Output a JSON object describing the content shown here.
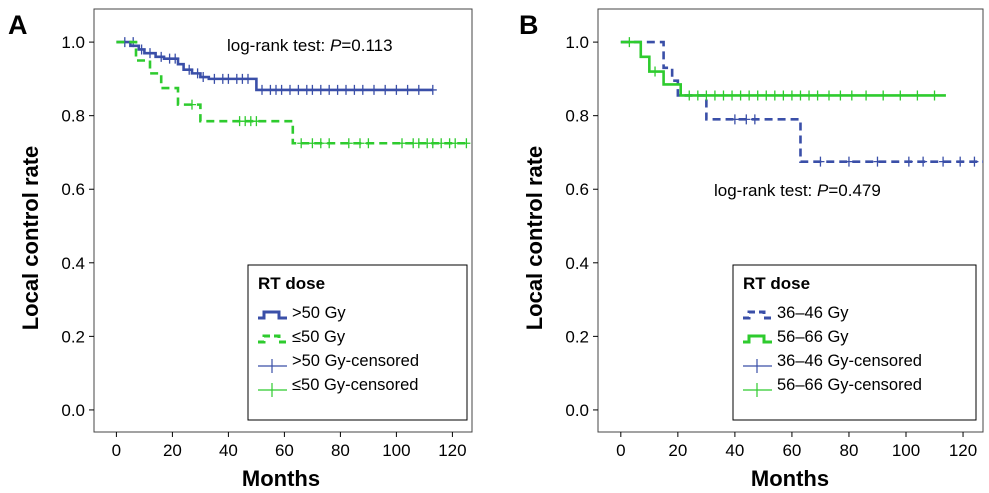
{
  "chart_data": [
    {
      "panel": "A",
      "type": "line",
      "step": true,
      "xlabel": "Months",
      "ylabel": "Local control rate",
      "xlim": [
        -8,
        127
      ],
      "ylim": [
        -0.06,
        1.09
      ],
      "xticks": [
        0,
        20,
        40,
        60,
        80,
        100,
        120
      ],
      "yticks": [
        "0.0",
        "0.2",
        "0.4",
        "0.6",
        "0.8",
        "1.0"
      ],
      "annotation": {
        "prefix": "log-rank test: ",
        "italic": "P",
        "suffix": "=0.113"
      },
      "legend": {
        "title": "RT dose",
        "placement": "bottom-right",
        "entries": [
          ">50 Gy",
          "≤50 Gy",
          ">50 Gy-censored",
          "≤50 Gy-censored"
        ]
      },
      "series": [
        {
          "name": ">50 Gy",
          "color": "#3a4fa8",
          "dash": false,
          "x": [
            0,
            5,
            8,
            10,
            14,
            17,
            22,
            24,
            27,
            30,
            33,
            50,
            113
          ],
          "y": [
            1.0,
            0.99,
            0.98,
            0.97,
            0.96,
            0.955,
            0.94,
            0.925,
            0.915,
            0.905,
            0.9,
            0.87,
            0.87
          ],
          "censored": [
            [
              3,
              1.0
            ],
            [
              6,
              1.0
            ],
            [
              9,
              0.98
            ],
            [
              12,
              0.97
            ],
            [
              16,
              0.96
            ],
            [
              19,
              0.955
            ],
            [
              21,
              0.955
            ],
            [
              26,
              0.925
            ],
            [
              29,
              0.915
            ],
            [
              31,
              0.905
            ],
            [
              35,
              0.9
            ],
            [
              38,
              0.9
            ],
            [
              40,
              0.9
            ],
            [
              43,
              0.9
            ],
            [
              45,
              0.9
            ],
            [
              47,
              0.9
            ],
            [
              52,
              0.87
            ],
            [
              55,
              0.87
            ],
            [
              57,
              0.87
            ],
            [
              59,
              0.87
            ],
            [
              62,
              0.87
            ],
            [
              65,
              0.87
            ],
            [
              68,
              0.87
            ],
            [
              70,
              0.87
            ],
            [
              73,
              0.87
            ],
            [
              76,
              0.87
            ],
            [
              79,
              0.87
            ],
            [
              82,
              0.87
            ],
            [
              85,
              0.87
            ],
            [
              88,
              0.87
            ],
            [
              92,
              0.87
            ],
            [
              96,
              0.87
            ],
            [
              100,
              0.87
            ],
            [
              104,
              0.87
            ],
            [
              108,
              0.87
            ],
            [
              113,
              0.87
            ]
          ]
        },
        {
          "name": "≤50 Gy",
          "color": "#2ecb2e",
          "dash": true,
          "x": [
            0,
            7,
            12,
            16,
            22,
            30,
            63,
            125
          ],
          "y": [
            1.0,
            0.95,
            0.915,
            0.875,
            0.83,
            0.785,
            0.725,
            0.725
          ],
          "censored": [
            [
              27,
              0.83
            ],
            [
              44,
              0.785
            ],
            [
              46,
              0.785
            ],
            [
              48,
              0.785
            ],
            [
              50,
              0.785
            ],
            [
              66,
              0.725
            ],
            [
              70,
              0.725
            ],
            [
              73,
              0.725
            ],
            [
              76,
              0.725
            ],
            [
              83,
              0.725
            ],
            [
              87,
              0.725
            ],
            [
              90,
              0.725
            ],
            [
              102,
              0.725
            ],
            [
              106,
              0.725
            ],
            [
              108,
              0.725
            ],
            [
              111,
              0.725
            ],
            [
              113,
              0.725
            ],
            [
              116,
              0.725
            ],
            [
              119,
              0.725
            ],
            [
              121,
              0.725
            ],
            [
              125,
              0.725
            ]
          ]
        }
      ]
    },
    {
      "panel": "B",
      "type": "line",
      "step": true,
      "xlabel": "Months",
      "ylabel": "Local control rate",
      "xlim": [
        -8,
        127
      ],
      "ylim": [
        -0.06,
        1.09
      ],
      "xticks": [
        0,
        20,
        40,
        60,
        80,
        100,
        120
      ],
      "yticks": [
        "0.0",
        "0.2",
        "0.4",
        "0.6",
        "0.8",
        "1.0"
      ],
      "annotation": {
        "prefix": "log-rank test: ",
        "italic": "P",
        "suffix": "=0.479"
      },
      "legend": {
        "title": "RT dose",
        "placement": "bottom-right",
        "entries": [
          "36–46 Gy",
          "56–66 Gy",
          "36–46 Gy-censored",
          "56–66 Gy-censored"
        ]
      },
      "series": [
        {
          "name": "36–46 Gy",
          "color": "#3a4fa8",
          "dash": true,
          "x": [
            0,
            15,
            18,
            20,
            30,
            63,
            127
          ],
          "y": [
            1.0,
            0.93,
            0.895,
            0.855,
            0.79,
            0.675,
            0.675
          ],
          "censored": [
            [
              40,
              0.79
            ],
            [
              44,
              0.79
            ],
            [
              47,
              0.79
            ],
            [
              70,
              0.675
            ],
            [
              80,
              0.675
            ],
            [
              90,
              0.675
            ],
            [
              101,
              0.675
            ],
            [
              106,
              0.675
            ],
            [
              113,
              0.675
            ],
            [
              119,
              0.675
            ],
            [
              124,
              0.675
            ]
          ]
        },
        {
          "name": "56–66 Gy",
          "color": "#2ecb2e",
          "dash": false,
          "x": [
            0,
            7,
            10,
            15,
            21,
            114
          ],
          "y": [
            1.0,
            0.96,
            0.92,
            0.885,
            0.855,
            0.855
          ],
          "censored": [
            [
              3,
              1.0
            ],
            [
              12,
              0.92
            ],
            [
              24,
              0.855
            ],
            [
              27,
              0.855
            ],
            [
              30,
              0.855
            ],
            [
              33,
              0.855
            ],
            [
              36,
              0.855
            ],
            [
              39,
              0.855
            ],
            [
              42,
              0.855
            ],
            [
              45,
              0.855
            ],
            [
              48,
              0.855
            ],
            [
              51,
              0.855
            ],
            [
              54,
              0.855
            ],
            [
              57,
              0.855
            ],
            [
              60,
              0.855
            ],
            [
              63,
              0.855
            ],
            [
              66,
              0.855
            ],
            [
              69,
              0.855
            ],
            [
              73,
              0.855
            ],
            [
              77,
              0.855
            ],
            [
              81,
              0.855
            ],
            [
              86,
              0.855
            ],
            [
              92,
              0.855
            ],
            [
              98,
              0.855
            ],
            [
              104,
              0.855
            ],
            [
              110,
              0.855
            ]
          ]
        }
      ]
    }
  ]
}
